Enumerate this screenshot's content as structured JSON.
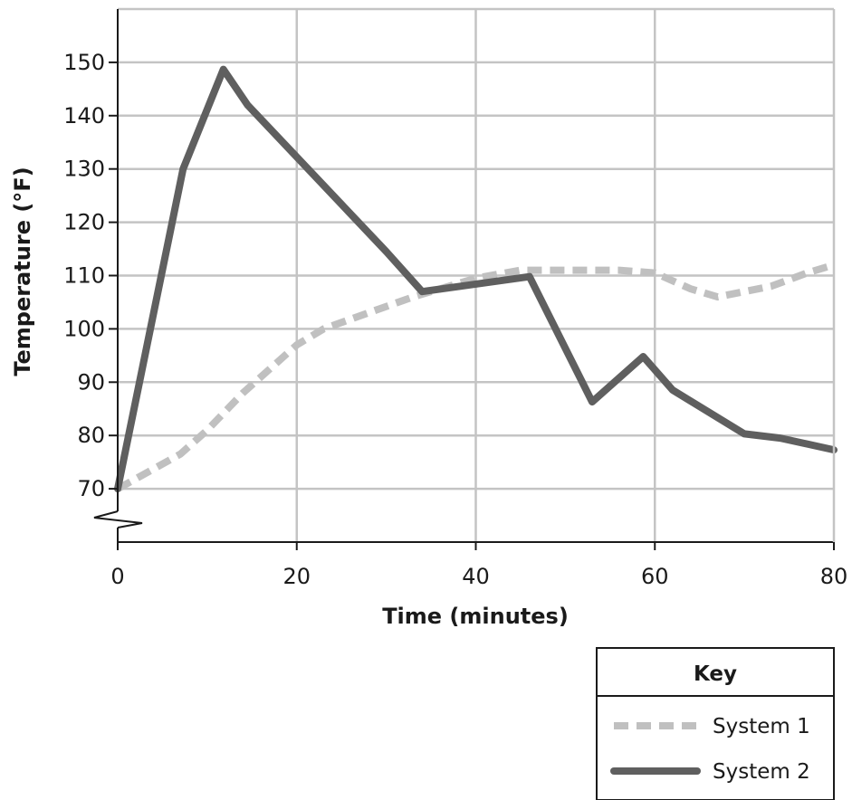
{
  "chart_data": {
    "type": "line",
    "title": "",
    "xlabel": "Time (minutes)",
    "ylabel": "Temperature (°F)",
    "xlim": [
      0,
      80
    ],
    "ylim": [
      60,
      160
    ],
    "x_ticks": [
      "0",
      "20",
      "40",
      "60",
      "80"
    ],
    "y_ticks": [
      "70",
      "80",
      "90",
      "100",
      "110",
      "120",
      "130",
      "140",
      "150"
    ],
    "y_axis_break": true,
    "grid": true,
    "legend": {
      "title": "Key",
      "position": "bottom-right"
    },
    "series": [
      {
        "name": "System 1",
        "style": "dashed",
        "color": "#c0c0c0",
        "points": [
          [
            0,
            70
          ],
          [
            7,
            76.5
          ],
          [
            10,
            81
          ],
          [
            14,
            88
          ],
          [
            20,
            97
          ],
          [
            23,
            100
          ],
          [
            28,
            103
          ],
          [
            33,
            106
          ],
          [
            40,
            109.5
          ],
          [
            45,
            111
          ],
          [
            50,
            111
          ],
          [
            56,
            111
          ],
          [
            60,
            110.5
          ],
          [
            64,
            107.5
          ],
          [
            67,
            106
          ],
          [
            70,
            107
          ],
          [
            73,
            108
          ],
          [
            77,
            110.5
          ],
          [
            80,
            112
          ]
        ]
      },
      {
        "name": "System 2",
        "style": "solid",
        "color": "#5f5f5f",
        "points": [
          [
            0,
            70
          ],
          [
            7.3,
            130
          ],
          [
            11.8,
            148.7
          ],
          [
            14.5,
            142
          ],
          [
            30,
            114.5
          ],
          [
            34,
            107
          ],
          [
            46,
            109.8
          ],
          [
            53,
            86.3
          ],
          [
            58.7,
            94.8
          ],
          [
            62,
            88.5
          ],
          [
            70,
            80.3
          ],
          [
            74,
            79.5
          ],
          [
            80,
            77.3
          ]
        ]
      }
    ]
  }
}
